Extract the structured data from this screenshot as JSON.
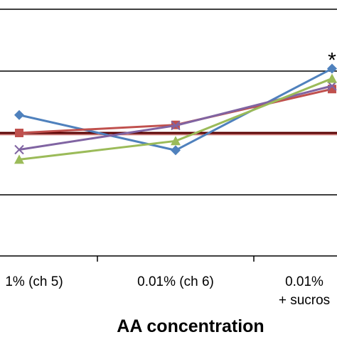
{
  "chart_data": {
    "type": "line",
    "xlabel": "AA concentration",
    "categories": [
      [
        "1% (ch 5)"
      ],
      [
        "0.01% (ch 6)"
      ],
      [
        "0.01%",
        "+ sucros"
      ]
    ],
    "y_gridlines": [
      0,
      1,
      2,
      3
    ],
    "ylim": [
      -0.5,
      4.1
    ],
    "reference_line": {
      "y": 1,
      "color": "#5a0000"
    },
    "series": [
      {
        "color": "#4f81bd",
        "marker": "diamond",
        "values": [
          1.29,
          0.72,
          2.04
        ]
      },
      {
        "color": "#c0504d",
        "marker": "square",
        "values": [
          1.0,
          1.13,
          1.71
        ]
      },
      {
        "color": "#8064a2",
        "marker": "x",
        "values": [
          0.73,
          1.12,
          1.76
        ]
      },
      {
        "color": "#9bbb59",
        "marker": "triangle",
        "values": [
          0.57,
          0.87,
          1.88
        ]
      }
    ],
    "annotations": [
      {
        "text": "*",
        "category": 2
      }
    ]
  }
}
